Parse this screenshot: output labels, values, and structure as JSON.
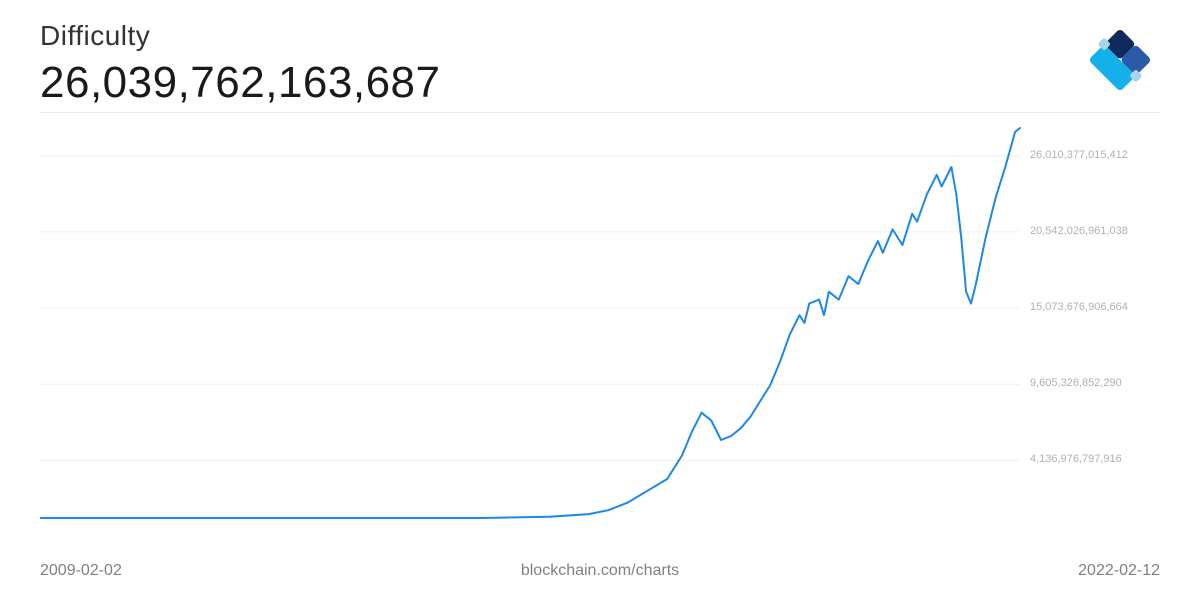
{
  "header": {
    "title": "Difficulty",
    "value": "26,039,762,163,687"
  },
  "chart": {
    "type": "line",
    "x_start": "2009-02-02",
    "x_end": "2022-02-12",
    "y_min": 0,
    "y_max": 28000000000000,
    "y_ticks": [
      {
        "value": 4136976797916,
        "label": "4,136,976,797,916"
      },
      {
        "value": 9605326852290,
        "label": "9,605,326,852,290"
      },
      {
        "value": 15073676906664,
        "label": "15,073,676,906,664"
      },
      {
        "value": 20542026961038,
        "label": "20,542,026,961,038"
      },
      {
        "value": 26010377015412,
        "label": "26,010,377,015,412"
      }
    ],
    "grid_color": "#f0f0f0",
    "line_color": "#1e88e5",
    "line_width": 2,
    "background_color": "#ffffff",
    "series": [
      {
        "x": 0.0,
        "y": 0.0
      },
      {
        "x": 0.45,
        "y": 0.0
      },
      {
        "x": 0.52,
        "y": 0.003
      },
      {
        "x": 0.56,
        "y": 0.01
      },
      {
        "x": 0.58,
        "y": 0.02
      },
      {
        "x": 0.6,
        "y": 0.04
      },
      {
        "x": 0.62,
        "y": 0.07
      },
      {
        "x": 0.64,
        "y": 0.1
      },
      {
        "x": 0.655,
        "y": 0.16
      },
      {
        "x": 0.665,
        "y": 0.22
      },
      {
        "x": 0.675,
        "y": 0.27
      },
      {
        "x": 0.685,
        "y": 0.25
      },
      {
        "x": 0.695,
        "y": 0.2
      },
      {
        "x": 0.705,
        "y": 0.21
      },
      {
        "x": 0.715,
        "y": 0.23
      },
      {
        "x": 0.725,
        "y": 0.26
      },
      {
        "x": 0.735,
        "y": 0.3
      },
      {
        "x": 0.745,
        "y": 0.34
      },
      {
        "x": 0.755,
        "y": 0.4
      },
      {
        "x": 0.765,
        "y": 0.47
      },
      {
        "x": 0.775,
        "y": 0.52
      },
      {
        "x": 0.78,
        "y": 0.5
      },
      {
        "x": 0.785,
        "y": 0.55
      },
      {
        "x": 0.795,
        "y": 0.56
      },
      {
        "x": 0.8,
        "y": 0.52
      },
      {
        "x": 0.805,
        "y": 0.58
      },
      {
        "x": 0.815,
        "y": 0.56
      },
      {
        "x": 0.825,
        "y": 0.62
      },
      {
        "x": 0.835,
        "y": 0.6
      },
      {
        "x": 0.845,
        "y": 0.66
      },
      {
        "x": 0.855,
        "y": 0.71
      },
      {
        "x": 0.86,
        "y": 0.68
      },
      {
        "x": 0.87,
        "y": 0.74
      },
      {
        "x": 0.88,
        "y": 0.7
      },
      {
        "x": 0.89,
        "y": 0.78
      },
      {
        "x": 0.895,
        "y": 0.76
      },
      {
        "x": 0.905,
        "y": 0.83
      },
      {
        "x": 0.915,
        "y": 0.88
      },
      {
        "x": 0.92,
        "y": 0.85
      },
      {
        "x": 0.93,
        "y": 0.9
      },
      {
        "x": 0.935,
        "y": 0.83
      },
      {
        "x": 0.94,
        "y": 0.72
      },
      {
        "x": 0.945,
        "y": 0.58
      },
      {
        "x": 0.95,
        "y": 0.55
      },
      {
        "x": 0.955,
        "y": 0.6
      },
      {
        "x": 0.965,
        "y": 0.72
      },
      {
        "x": 0.975,
        "y": 0.82
      },
      {
        "x": 0.985,
        "y": 0.9
      },
      {
        "x": 0.995,
        "y": 0.99
      },
      {
        "x": 1.0,
        "y": 1.0
      }
    ]
  },
  "footer": {
    "start_date": "2009-02-02",
    "source": "blockchain.com/charts",
    "end_date": "2022-02-12"
  },
  "logo": {
    "colors": {
      "dark_navy": "#0f2b5b",
      "mid_blue": "#2a5aa8",
      "light_blue": "#14b0ea",
      "pale_blue": "#a8d3e8"
    }
  }
}
